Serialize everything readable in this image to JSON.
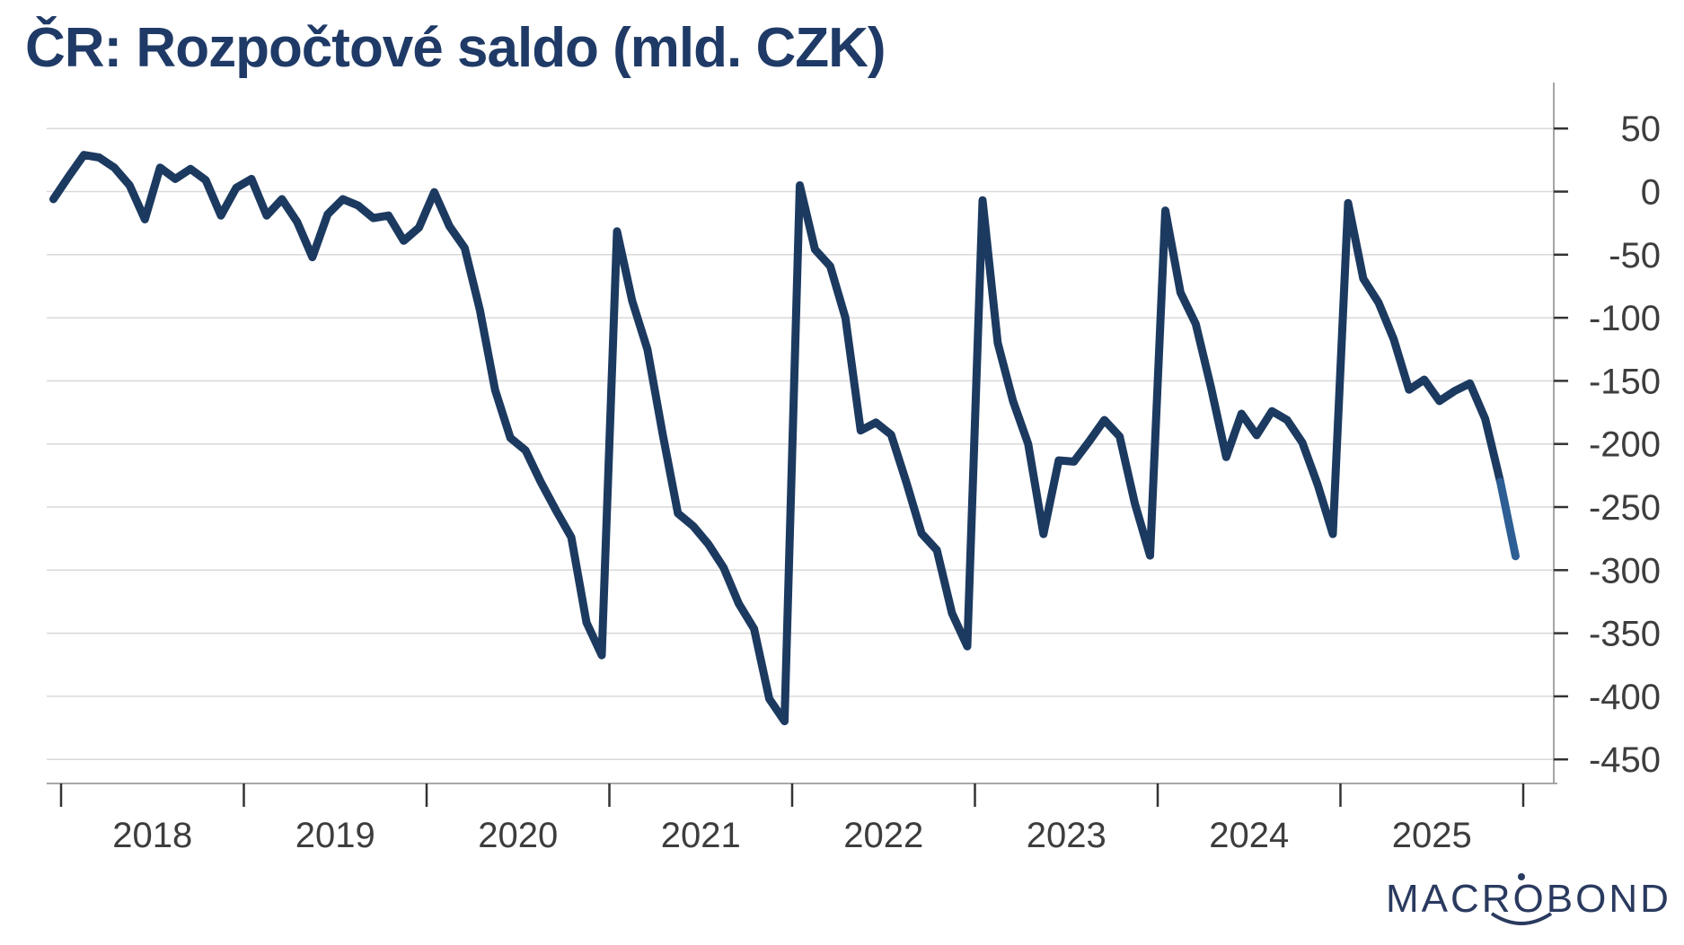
{
  "title": "ČR: Rozpočtové saldo (mld. CZK)",
  "logo": {
    "text": "MACROBOND"
  },
  "colors": {
    "title": "#1f3a66",
    "line": "#1c3a60",
    "final_segment": "#2d5f95",
    "grid": "#d9d9d9",
    "axis": "#9b9b9b",
    "tick": "#333333",
    "tick_label": "#3d3d3d",
    "logo": "#2a3a5f",
    "background": "#ffffff"
  },
  "chart_data": {
    "type": "line",
    "title": "ČR: Rozpočtové saldo (mld. CZK)",
    "unit": "mld. CZK",
    "grid": true,
    "y_axis_side": "right",
    "y_ticks": [
      50,
      0,
      -50,
      -100,
      -150,
      -200,
      -250,
      -300,
      -350,
      -400,
      -450
    ],
    "ylim": [
      -470,
      75
    ],
    "x_tick_labels": [
      "2018",
      "2019",
      "2020",
      "2021",
      "2022",
      "2023",
      "2024",
      "2025"
    ],
    "final_segment_from_index": 95,
    "series": [
      {
        "name": "Rozpočtové saldo",
        "points": [
          [
            "2017-12",
            -6
          ],
          [
            "2018-01",
            12
          ],
          [
            "2018-02",
            29
          ],
          [
            "2018-03",
            27
          ],
          [
            "2018-04",
            19
          ],
          [
            "2018-05",
            5
          ],
          [
            "2018-06",
            -22
          ],
          [
            "2018-07",
            19
          ],
          [
            "2018-08",
            10
          ],
          [
            "2018-09",
            18
          ],
          [
            "2018-10",
            9
          ],
          [
            "2018-11",
            -19
          ],
          [
            "2018-12",
            3
          ],
          [
            "2019-01",
            10
          ],
          [
            "2019-02",
            -19
          ],
          [
            "2019-03",
            -6
          ],
          [
            "2019-04",
            -24
          ],
          [
            "2019-05",
            -52
          ],
          [
            "2019-06",
            -18
          ],
          [
            "2019-07",
            -6
          ],
          [
            "2019-08",
            -11
          ],
          [
            "2019-09",
            -21
          ],
          [
            "2019-10",
            -19
          ],
          [
            "2019-11",
            -39
          ],
          [
            "2019-12",
            -28.5
          ],
          [
            "2020-01",
            -0.4
          ],
          [
            "2020-02",
            -27.4
          ],
          [
            "2020-03",
            -44.7
          ],
          [
            "2020-04",
            -93.8
          ],
          [
            "2020-05",
            -157.4
          ],
          [
            "2020-06",
            -195.2
          ],
          [
            "2020-07",
            -205.1
          ],
          [
            "2020-08",
            -230.3
          ],
          [
            "2020-09",
            -252.7
          ],
          [
            "2020-10",
            -274.0
          ],
          [
            "2020-11",
            -341.5
          ],
          [
            "2020-12",
            -367.4
          ],
          [
            "2021-01",
            -31.5
          ],
          [
            "2021-02",
            -86.6
          ],
          [
            "2021-03",
            -125.2
          ],
          [
            "2021-04",
            -192.0
          ],
          [
            "2021-05",
            -255.0
          ],
          [
            "2021-06",
            -265.1
          ],
          [
            "2021-07",
            -279.4
          ],
          [
            "2021-08",
            -298.1
          ],
          [
            "2021-09",
            -326.6
          ],
          [
            "2021-10",
            -346.5
          ],
          [
            "2021-11",
            -401.9
          ],
          [
            "2021-12",
            -419.7
          ],
          [
            "2022-01",
            5
          ],
          [
            "2022-02",
            -45.9
          ],
          [
            "2022-03",
            -59.1
          ],
          [
            "2022-04",
            -100.1
          ],
          [
            "2022-05",
            -189.3
          ],
          [
            "2022-06",
            -183.0
          ],
          [
            "2022-07",
            -192.7
          ],
          [
            "2022-08",
            -230.5
          ],
          [
            "2022-09",
            -270.9
          ],
          [
            "2022-10",
            -284.1
          ],
          [
            "2022-11",
            -334.2
          ],
          [
            "2022-12",
            -360.4
          ],
          [
            "2023-01",
            -6.8
          ],
          [
            "2023-02",
            -120
          ],
          [
            "2023-03",
            -166
          ],
          [
            "2023-04",
            -200
          ],
          [
            "2023-05",
            -271.4
          ],
          [
            "2023-06",
            -213
          ],
          [
            "2023-07",
            -214
          ],
          [
            "2023-08",
            -198
          ],
          [
            "2023-09",
            -181
          ],
          [
            "2023-10",
            -194
          ],
          [
            "2023-11",
            -247
          ],
          [
            "2023-12",
            -288.5
          ],
          [
            "2024-01",
            -15
          ],
          [
            "2024-02",
            -80
          ],
          [
            "2024-03",
            -105
          ],
          [
            "2024-04",
            -155
          ],
          [
            "2024-05",
            -210.4
          ],
          [
            "2024-06",
            -176
          ],
          [
            "2024-07",
            -193
          ],
          [
            "2024-08",
            -174
          ],
          [
            "2024-09",
            -181
          ],
          [
            "2024-10",
            -199
          ],
          [
            "2024-11",
            -232
          ],
          [
            "2024-12",
            -271.4
          ],
          [
            "2025-01",
            -9
          ],
          [
            "2025-02",
            -69
          ],
          [
            "2025-03",
            -88
          ],
          [
            "2025-04",
            -117
          ],
          [
            "2025-05",
            -157
          ],
          [
            "2025-06",
            -149
          ],
          [
            "2025-07",
            -166
          ],
          [
            "2025-08",
            -158
          ],
          [
            "2025-09",
            -152
          ],
          [
            "2025-10",
            -180
          ],
          [
            "2025-11",
            -230
          ],
          [
            "2025-12",
            -289
          ]
        ]
      }
    ]
  }
}
